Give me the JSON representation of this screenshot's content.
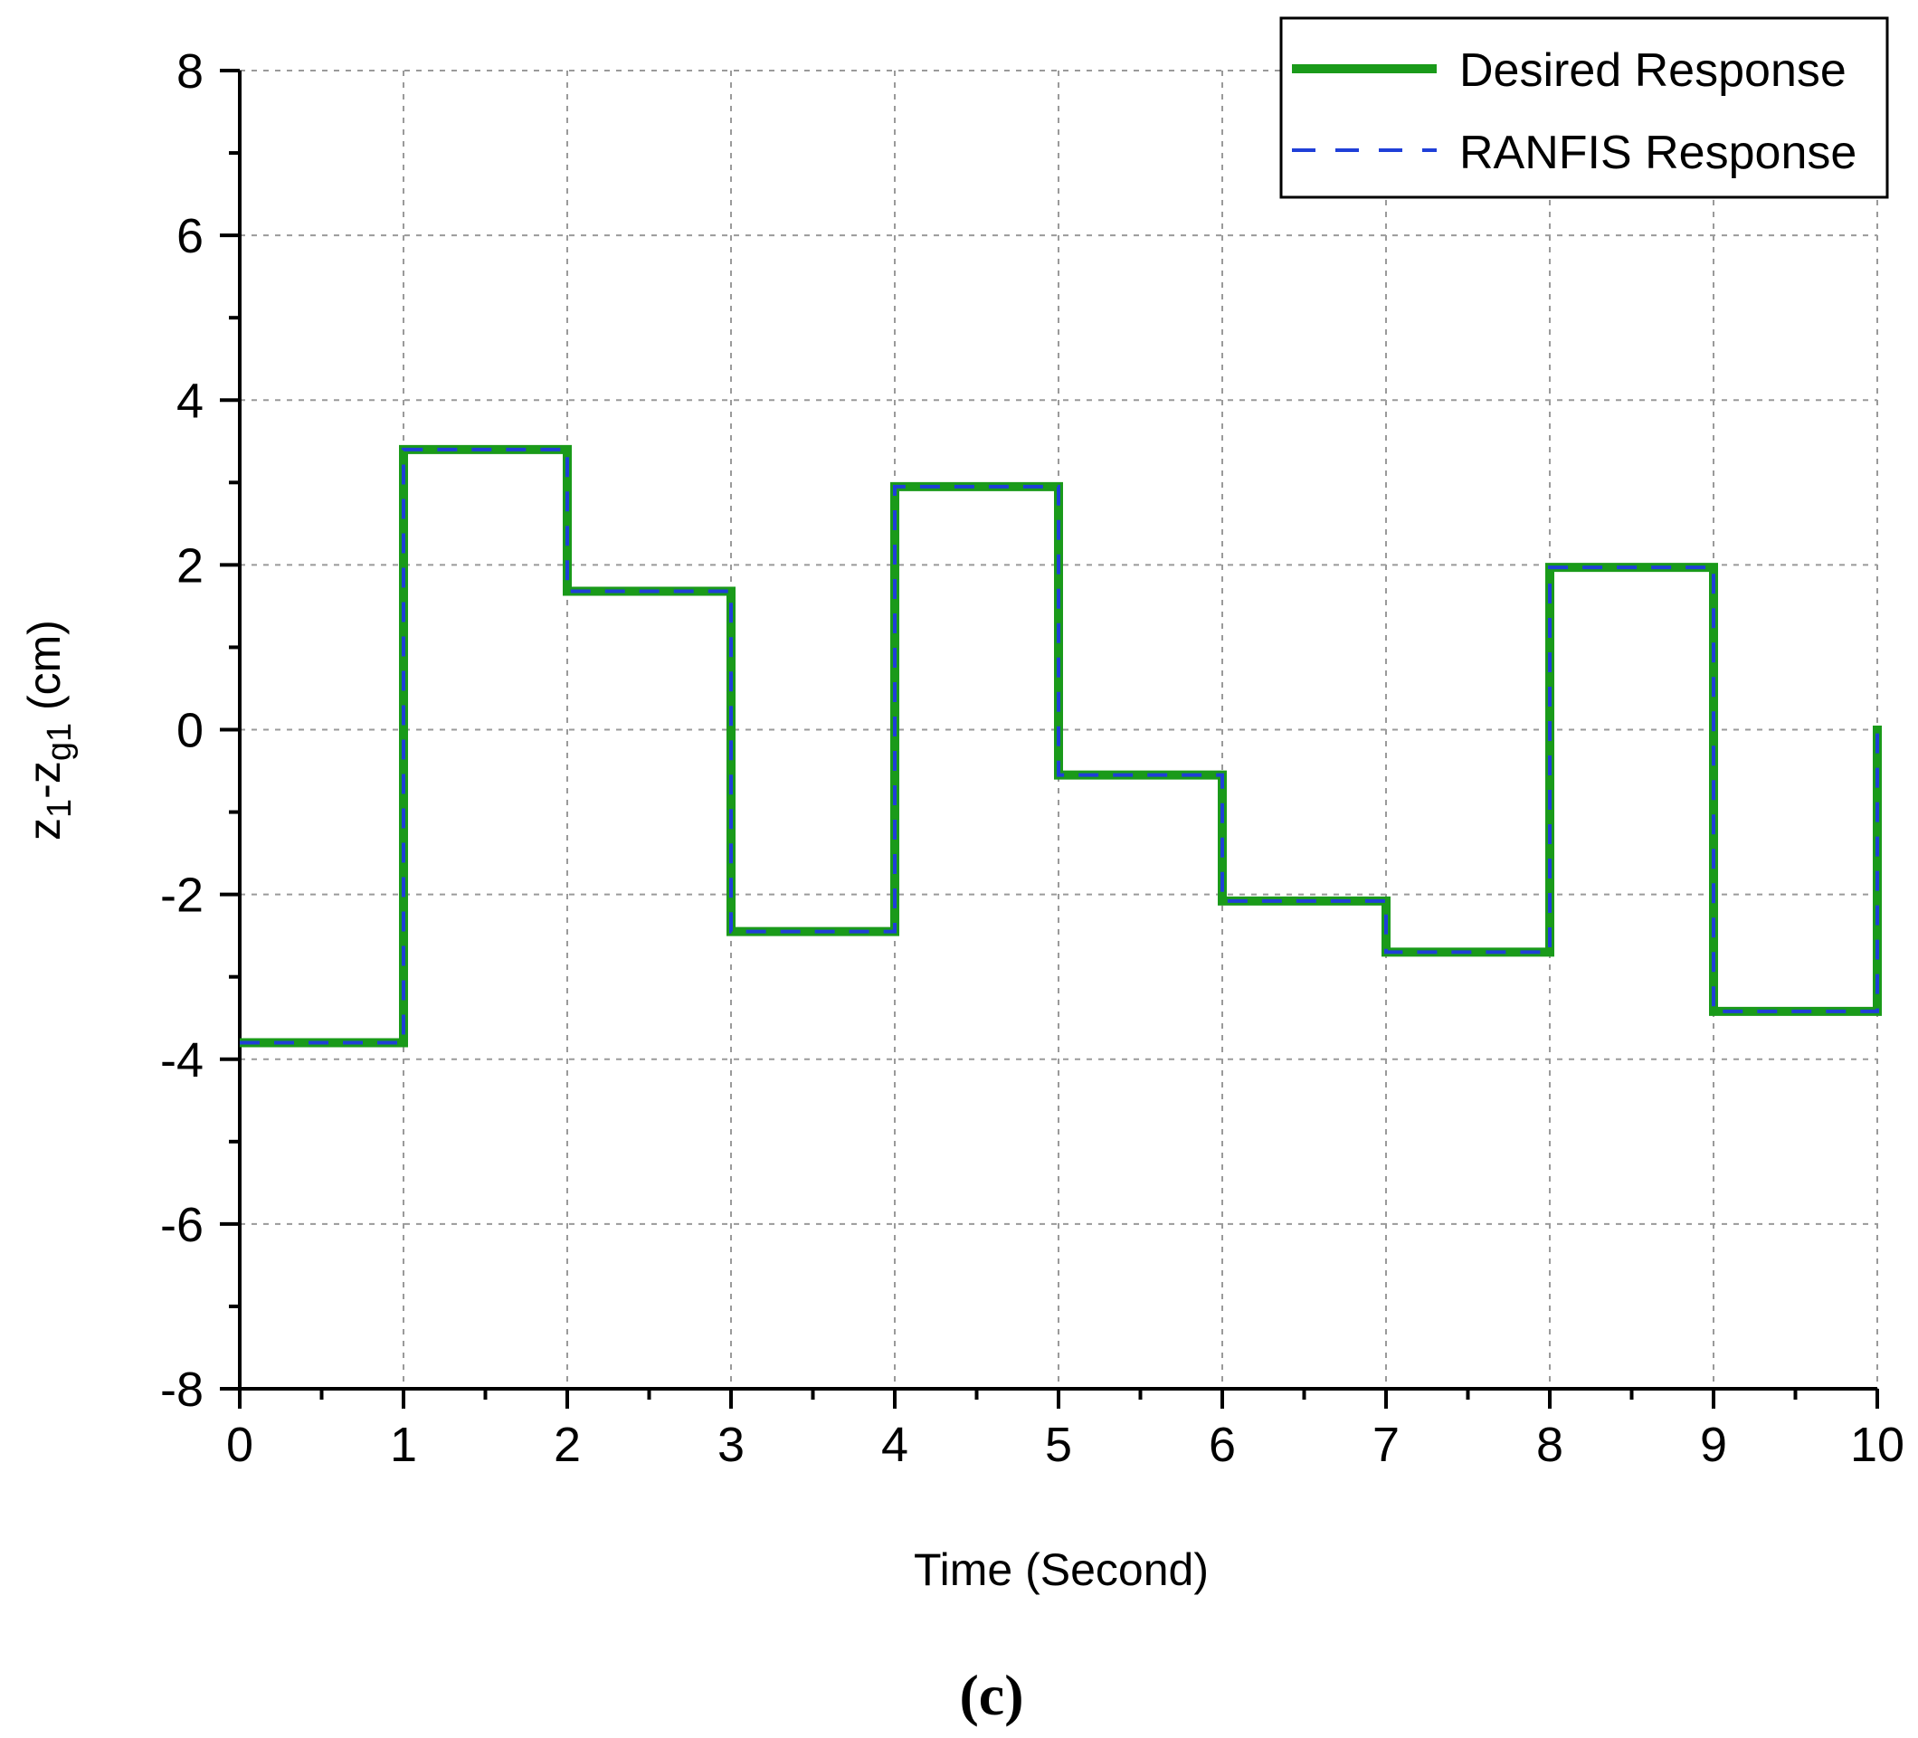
{
  "chart_data": {
    "type": "line",
    "xlabel": "Time (Second)",
    "ylabel": {
      "base": "z",
      "sub1": "1",
      "mid": "-z",
      "sub2": "g1",
      "unit": " (cm)"
    },
    "xlim": [
      0,
      10
    ],
    "ylim": [
      -8,
      8
    ],
    "x_ticks": [
      "0",
      "1",
      "2",
      "3",
      "4",
      "5",
      "6",
      "7",
      "8",
      "9",
      "10"
    ],
    "y_ticks": [
      "8",
      "6",
      "4",
      "2",
      "0",
      "-2",
      "-4",
      "-6",
      "-8"
    ],
    "grid": true,
    "legend_position": "top-right",
    "step_x": [
      0,
      1,
      2,
      3,
      4,
      5,
      6,
      7,
      8,
      9,
      10
    ],
    "series": [
      {
        "name": "Desired Response",
        "style": "solid",
        "color": "#1a9a1a",
        "values": [
          -3.8,
          3.4,
          1.68,
          -2.45,
          2.95,
          -0.55,
          -2.08,
          -2.7,
          1.97,
          -3.42,
          0.05
        ]
      },
      {
        "name": "RANFIS Response",
        "style": "dashed",
        "color": "#1f3fd8",
        "values": [
          -3.8,
          3.4,
          1.68,
          -2.45,
          2.95,
          -0.55,
          -2.08,
          -2.7,
          1.97,
          -3.42,
          0.05
        ]
      }
    ],
    "caption": "(c)"
  }
}
